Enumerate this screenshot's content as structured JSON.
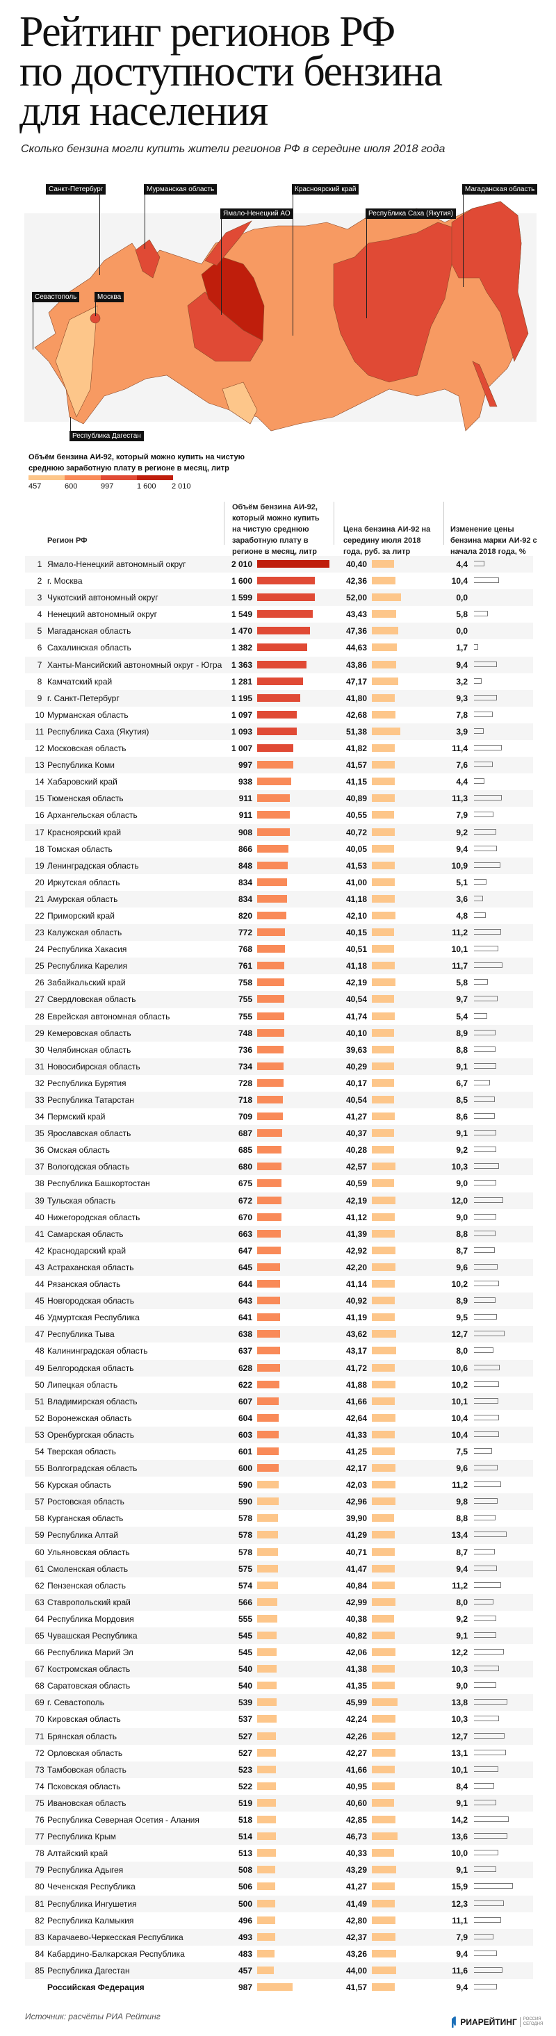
{
  "header": {
    "title_lines": [
      "Рейтинг регионов РФ",
      "по доступности бензина",
      "для населения"
    ],
    "subtitle": "Сколько бензина могли купить жители регионов РФ в середине июля 2018 года"
  },
  "map": {
    "labels": [
      "Санкт-Петербург",
      "Мурманская область",
      "Ямало-Ненецкий АО",
      "Красноярский край",
      "Республика Саха (Якутия)",
      "Магаданская область",
      "Севастополь",
      "Москва",
      "Республика Дагестан"
    ]
  },
  "legend": {
    "title": "Объём бензина АИ-92, который можно купить на чистую среднюю заработную плату в регионе в месяц, литр",
    "ticks": [
      "457",
      "600",
      "997",
      "1 600",
      "2 010"
    ],
    "colors": [
      "#fdc68a",
      "#f98a58",
      "#e04a35",
      "#bf1e0c"
    ]
  },
  "table": {
    "columns": {
      "region": "Регион РФ",
      "volume": "Объём бензина АИ-92, который можно купить на чистую среднюю заработную плату в регионе в месяц, литр",
      "price": "Цена бензина АИ-92 на середину июля 2018 года, руб. за литр",
      "change": "Изменение цены бензина марки АИ-92 с начала 2018 года, %"
    },
    "price_bar_color": "#fdc68a",
    "change_bar_color": "#777777",
    "rows": [
      [
        "1",
        "Ямало-Ненецкий автономный округ",
        "2 010",
        "40,40",
        "4,4"
      ],
      [
        "2",
        "г. Москва",
        "1 600",
        "42,36",
        "10,4"
      ],
      [
        "3",
        "Чукотский автономный округ",
        "1 599",
        "52,00",
        "0,0"
      ],
      [
        "4",
        "Ненецкий автономный округ",
        "1 549",
        "43,43",
        "5,8"
      ],
      [
        "5",
        "Магаданская область",
        "1 470",
        "47,36",
        "0,0"
      ],
      [
        "6",
        "Сахалинская область",
        "1 382",
        "44,63",
        "1,7"
      ],
      [
        "7",
        "Ханты-Мансийский автономный округ - Югра",
        "1 363",
        "43,86",
        "9,4"
      ],
      [
        "8",
        "Камчатский край",
        "1 281",
        "47,17",
        "3,2"
      ],
      [
        "9",
        "г. Санкт-Петербург",
        "1 195",
        "41,80",
        "9,3"
      ],
      [
        "10",
        "Мурманская область",
        "1 097",
        "42,68",
        "7,8"
      ],
      [
        "11",
        "Республика Саха (Якутия)",
        "1 093",
        "51,38",
        "3,9"
      ],
      [
        "12",
        "Московская область",
        "1 007",
        "41,82",
        "11,4"
      ],
      [
        "13",
        "Республика Коми",
        "997",
        "41,57",
        "7,6"
      ],
      [
        "14",
        "Хабаровский край",
        "938",
        "41,15",
        "4,4"
      ],
      [
        "15",
        "Тюменская область",
        "911",
        "40,89",
        "11,3"
      ],
      [
        "16",
        "Архангельская область",
        "911",
        "40,55",
        "7,9"
      ],
      [
        "17",
        "Красноярский край",
        "908",
        "40,72",
        "9,2"
      ],
      [
        "18",
        "Томская область",
        "866",
        "40,05",
        "9,4"
      ],
      [
        "19",
        "Ленинградская область",
        "848",
        "41,53",
        "10,9"
      ],
      [
        "20",
        "Иркутская область",
        "834",
        "41,00",
        "5,1"
      ],
      [
        "21",
        "Амурская область",
        "834",
        "41,18",
        "3,6"
      ],
      [
        "22",
        "Приморский край",
        "820",
        "42,10",
        "4,8"
      ],
      [
        "23",
        "Калужская область",
        "772",
        "40,15",
        "11,2"
      ],
      [
        "24",
        "Республика Хакасия",
        "768",
        "40,51",
        "10,1"
      ],
      [
        "25",
        "Республика Карелия",
        "761",
        "41,18",
        "11,7"
      ],
      [
        "26",
        "Забайкальский край",
        "758",
        "42,19",
        "5,8"
      ],
      [
        "27",
        "Свердловская область",
        "755",
        "40,54",
        "9,7"
      ],
      [
        "28",
        "Еврейская автономная область",
        "755",
        "41,74",
        "5,4"
      ],
      [
        "29",
        "Кемеровская область",
        "748",
        "40,10",
        "8,9"
      ],
      [
        "30",
        "Челябинская область",
        "736",
        "39,63",
        "8,8"
      ],
      [
        "31",
        "Новосибирская область",
        "734",
        "40,29",
        "9,1"
      ],
      [
        "32",
        "Республика Бурятия",
        "728",
        "40,17",
        "6,7"
      ],
      [
        "33",
        "Республика Татарстан",
        "718",
        "40,54",
        "8,5"
      ],
      [
        "34",
        "Пермский край",
        "709",
        "41,27",
        "8,6"
      ],
      [
        "35",
        "Ярославская область",
        "687",
        "40,37",
        "9,1"
      ],
      [
        "36",
        "Омская область",
        "685",
        "40,28",
        "9,2"
      ],
      [
        "37",
        "Вологодская область",
        "680",
        "42,57",
        "10,3"
      ],
      [
        "38",
        "Республика Башкортостан",
        "675",
        "40,59",
        "9,0"
      ],
      [
        "39",
        "Тульская область",
        "672",
        "42,19",
        "12,0"
      ],
      [
        "40",
        "Нижегородская область",
        "670",
        "41,12",
        "9,0"
      ],
      [
        "41",
        "Самарская область",
        "663",
        "41,39",
        "8,8"
      ],
      [
        "42",
        "Краснодарский край",
        "647",
        "42,92",
        "8,7"
      ],
      [
        "43",
        "Астраханская область",
        "645",
        "42,20",
        "9,6"
      ],
      [
        "44",
        "Рязанская область",
        "644",
        "41,14",
        "10,2"
      ],
      [
        "45",
        "Новгородская область",
        "643",
        "40,92",
        "8,9"
      ],
      [
        "46",
        "Удмуртская Республика",
        "641",
        "41,19",
        "9,5"
      ],
      [
        "47",
        "Республика Тыва",
        "638",
        "43,62",
        "12,7"
      ],
      [
        "48",
        "Калининградская область",
        "637",
        "43,17",
        "8,0"
      ],
      [
        "49",
        "Белгородская область",
        "628",
        "41,72",
        "10,6"
      ],
      [
        "50",
        "Липецкая область",
        "622",
        "41,88",
        "10,2"
      ],
      [
        "51",
        "Владимирская область",
        "607",
        "41,66",
        "10,1"
      ],
      [
        "52",
        "Воронежская область",
        "604",
        "42,64",
        "10,4"
      ],
      [
        "53",
        "Оренбургская область",
        "603",
        "41,33",
        "10,4"
      ],
      [
        "54",
        "Тверская область",
        "601",
        "41,25",
        "7,5"
      ],
      [
        "55",
        "Волгоградская область",
        "600",
        "42,17",
        "9,6"
      ],
      [
        "56",
        "Курская область",
        "590",
        "42,03",
        "11,2"
      ],
      [
        "57",
        "Ростовская область",
        "590",
        "42,96",
        "9,8"
      ],
      [
        "58",
        "Курганская область",
        "578",
        "39,90",
        "8,8"
      ],
      [
        "59",
        "Республика Алтай",
        "578",
        "41,29",
        "13,4"
      ],
      [
        "60",
        "Ульяновская область",
        "578",
        "40,71",
        "8,7"
      ],
      [
        "61",
        "Смоленская область",
        "575",
        "41,47",
        "9,4"
      ],
      [
        "62",
        "Пензенская область",
        "574",
        "40,84",
        "11,2"
      ],
      [
        "63",
        "Ставропольский край",
        "566",
        "42,99",
        "8,0"
      ],
      [
        "64",
        "Республика Мордовия",
        "555",
        "40,38",
        "9,2"
      ],
      [
        "65",
        "Чувашская Республика",
        "545",
        "40,82",
        "9,1"
      ],
      [
        "66",
        "Республика Марий Эл",
        "545",
        "42,06",
        "12,2"
      ],
      [
        "67",
        "Костромская область",
        "540",
        "41,38",
        "10,3"
      ],
      [
        "68",
        "Саратовская область",
        "540",
        "41,35",
        "9,0"
      ],
      [
        "69",
        "г. Севастополь",
        "539",
        "45,99",
        "13,8"
      ],
      [
        "70",
        "Кировская область",
        "537",
        "42,24",
        "10,3"
      ],
      [
        "71",
        "Брянская область",
        "527",
        "42,26",
        "12,7"
      ],
      [
        "72",
        "Орловская область",
        "527",
        "42,27",
        "13,1"
      ],
      [
        "73",
        "Тамбовская область",
        "523",
        "41,66",
        "10,1"
      ],
      [
        "74",
        "Псковская область",
        "522",
        "40,95",
        "8,4"
      ],
      [
        "75",
        "Ивановская область",
        "519",
        "40,60",
        "9,1"
      ],
      [
        "76",
        "Республика Северная Осетия - Алания",
        "518",
        "42,85",
        "14,2"
      ],
      [
        "77",
        "Республика Крым",
        "514",
        "46,73",
        "13,6"
      ],
      [
        "78",
        "Алтайский край",
        "513",
        "40,33",
        "10,0"
      ],
      [
        "79",
        "Республика Адыгея",
        "508",
        "43,29",
        "9,1"
      ],
      [
        "80",
        "Чеченская Республика",
        "506",
        "41,27",
        "15,9"
      ],
      [
        "81",
        "Республика Ингушетия",
        "500",
        "41,49",
        "12,3"
      ],
      [
        "82",
        "Республика Калмыкия",
        "496",
        "42,80",
        "11,1"
      ],
      [
        "83",
        "Карачаево-Черкесская Республика",
        "493",
        "42,37",
        "7,9"
      ],
      [
        "84",
        "Кабардино-Балкарская Республика",
        "483",
        "43,26",
        "9,4"
      ],
      [
        "85",
        "Республика Дагестан",
        "457",
        "44,00",
        "11,6"
      ]
    ],
    "total": [
      "",
      "Российская Федерация",
      "987",
      "41,57",
      "9,4"
    ]
  },
  "chart_data": {
    "type": "table",
    "title": "Рейтинг регионов РФ по доступности бензина для населения",
    "subtitle": "Сколько бензина могли купить жители регионов РФ в середине июля 2018 года",
    "note": "values in table.rows: rank, region, volume (litres), price (rub/litre), change (%)"
  },
  "footer": {
    "source": "Источник: расчёты РИА Рейтинг",
    "logo_text": "РИАРЕЙТИНГ",
    "logo_sub": "РОССИЯ СЕГОДНЯ"
  }
}
